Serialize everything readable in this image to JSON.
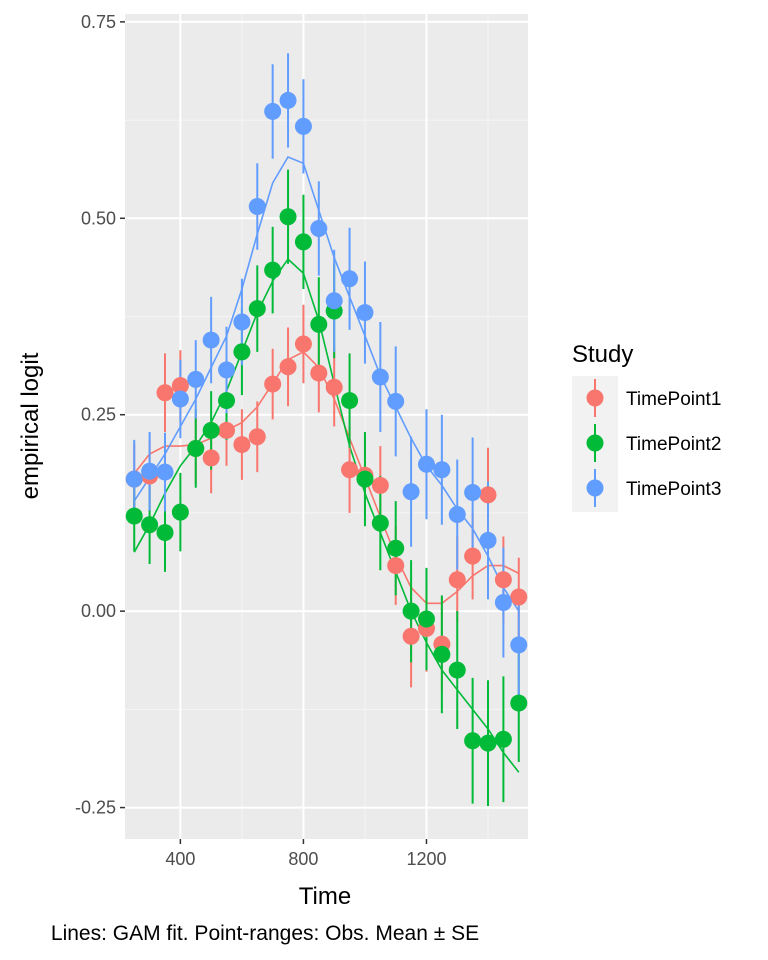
{
  "chart_data": {
    "type": "scatter",
    "xlabel": "Time",
    "ylabel": "empirical logit",
    "caption": "Lines: GAM fit. Point-ranges: Obs. Mean ± SE",
    "xlim": [
      220,
      1530
    ],
    "ylim": [
      -0.29,
      0.76
    ],
    "xticks": [
      400,
      800,
      1200
    ],
    "xtick_labels": [
      "400",
      "800",
      "1200"
    ],
    "yticks": [
      -0.25,
      0,
      0.25,
      0.5,
      0.75
    ],
    "ytick_labels": [
      "-0.25",
      "0.00",
      "0.25",
      "0.50",
      "0.75"
    ],
    "grid": true,
    "legend": {
      "title": "Study",
      "position": "right"
    },
    "series": [
      {
        "name": "TimePoint1",
        "color": "#F8766D",
        "x": [
          250,
          300,
          350,
          400,
          450,
          500,
          550,
          600,
          650,
          700,
          750,
          800,
          850,
          900,
          950,
          1000,
          1050,
          1100,
          1150,
          1200,
          1250,
          1300,
          1350,
          1400,
          1450,
          1500
        ],
        "mean": [
          0.168,
          0.172,
          0.278,
          0.287,
          0.207,
          0.195,
          0.23,
          0.212,
          0.222,
          0.289,
          0.311,
          0.34,
          0.303,
          0.285,
          0.18,
          0.173,
          0.16,
          0.058,
          -0.032,
          -0.022,
          -0.042,
          0.04,
          0.07,
          0.148,
          0.04,
          0.018
        ],
        "se": [
          0.045,
          0.045,
          0.05,
          0.045,
          0.045,
          0.045,
          0.045,
          0.045,
          0.045,
          0.045,
          0.05,
          0.05,
          0.05,
          0.05,
          0.055,
          0.05,
          0.05,
          0.05,
          0.065,
          0.055,
          0.06,
          0.055,
          0.055,
          0.06,
          0.055,
          0.05
        ],
        "fit_x": [
          250,
          300,
          350,
          400,
          450,
          500,
          550,
          600,
          650,
          700,
          750,
          800,
          850,
          900,
          950,
          1000,
          1050,
          1100,
          1150,
          1200,
          1250,
          1300,
          1350,
          1400,
          1450,
          1500
        ],
        "fit_y": [
          0.175,
          0.2,
          0.21,
          0.21,
          0.212,
          0.22,
          0.23,
          0.24,
          0.26,
          0.29,
          0.32,
          0.33,
          0.31,
          0.27,
          0.22,
          0.17,
          0.12,
          0.07,
          0.03,
          0.01,
          0.01,
          0.025,
          0.045,
          0.058,
          0.058,
          0.048
        ]
      },
      {
        "name": "TimePoint2",
        "color": "#00BA38",
        "x": [
          250,
          300,
          350,
          400,
          450,
          500,
          550,
          600,
          650,
          700,
          750,
          800,
          850,
          900,
          950,
          1000,
          1050,
          1100,
          1150,
          1200,
          1250,
          1300,
          1350,
          1400,
          1450,
          1500
        ],
        "mean": [
          0.121,
          0.11,
          0.1,
          0.126,
          0.207,
          0.23,
          0.268,
          0.33,
          0.385,
          0.434,
          0.502,
          0.47,
          0.365,
          0.382,
          0.268,
          0.168,
          0.112,
          0.08,
          0.0,
          -0.01,
          -0.055,
          -0.075,
          -0.165,
          -0.168,
          -0.163,
          -0.117
        ],
        "se": [
          0.045,
          0.05,
          0.05,
          0.05,
          0.05,
          0.05,
          0.05,
          0.055,
          0.055,
          0.055,
          0.06,
          0.06,
          0.06,
          0.06,
          0.06,
          0.06,
          0.06,
          0.06,
          0.065,
          0.065,
          0.075,
          0.075,
          0.08,
          0.08,
          0.08,
          0.075
        ],
        "fit_x": [
          250,
          300,
          350,
          400,
          450,
          500,
          550,
          600,
          650,
          700,
          750,
          800,
          850,
          900,
          950,
          1000,
          1050,
          1100,
          1150,
          1200,
          1250,
          1300,
          1350,
          1400,
          1450,
          1500
        ],
        "fit_y": [
          0.075,
          0.11,
          0.15,
          0.185,
          0.21,
          0.24,
          0.28,
          0.33,
          0.38,
          0.42,
          0.448,
          0.43,
          0.37,
          0.29,
          0.21,
          0.15,
          0.1,
          0.05,
          0.0,
          -0.04,
          -0.075,
          -0.1,
          -0.125,
          -0.15,
          -0.18,
          -0.205
        ]
      },
      {
        "name": "TimePoint3",
        "color": "#619CFF",
        "x": [
          250,
          300,
          350,
          400,
          450,
          500,
          550,
          600,
          650,
          700,
          750,
          800,
          850,
          900,
          950,
          1000,
          1050,
          1100,
          1150,
          1200,
          1250,
          1300,
          1350,
          1400,
          1450,
          1500
        ],
        "mean": [
          0.168,
          0.178,
          0.177,
          0.27,
          0.295,
          0.345,
          0.307,
          0.368,
          0.515,
          0.636,
          0.65,
          0.617,
          0.487,
          0.395,
          0.423,
          0.38,
          0.298,
          0.267,
          0.152,
          0.187,
          0.18,
          0.123,
          0.151,
          0.09,
          0.011,
          -0.043
        ],
        "se": [
          0.05,
          0.05,
          0.05,
          0.05,
          0.05,
          0.055,
          0.055,
          0.055,
          0.055,
          0.06,
          0.06,
          0.06,
          0.06,
          0.065,
          0.065,
          0.065,
          0.07,
          0.07,
          0.07,
          0.07,
          0.07,
          0.07,
          0.07,
          0.075,
          0.07,
          0.065
        ],
        "fit_x": [
          250,
          300,
          350,
          400,
          450,
          500,
          550,
          600,
          650,
          700,
          750,
          800,
          850,
          900,
          950,
          1000,
          1050,
          1100,
          1150,
          1200,
          1250,
          1300,
          1350,
          1400,
          1450,
          1500
        ],
        "fit_y": [
          0.14,
          0.17,
          0.2,
          0.235,
          0.27,
          0.31,
          0.35,
          0.41,
          0.48,
          0.545,
          0.578,
          0.57,
          0.51,
          0.45,
          0.4,
          0.35,
          0.3,
          0.26,
          0.22,
          0.185,
          0.16,
          0.13,
          0.105,
          0.07,
          0.03,
          0.0
        ]
      }
    ]
  }
}
